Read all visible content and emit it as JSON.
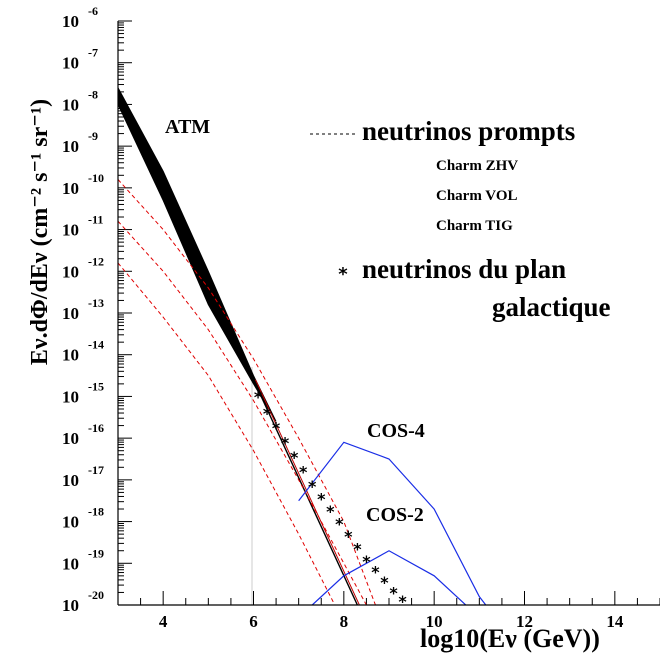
{
  "chart_data": {
    "type": "line",
    "xlabel": "log10(Eν (GeV))",
    "ylabel": "Eν.dΦ/dEν (cm⁻² s⁻¹ sr⁻¹)",
    "xlim": [
      3,
      15
    ],
    "ylim": [
      -20,
      -6
    ],
    "log_y": true,
    "x_ticks": [
      4,
      6,
      8,
      10,
      12,
      14
    ],
    "y_ticks": [
      -6,
      -7,
      -8,
      -9,
      -10,
      -11,
      -12,
      -13,
      -14,
      -15,
      -16,
      -17,
      -18,
      -19,
      -20
    ],
    "legend": {
      "prompt_title": "neutrinos prompts",
      "prompt_models": [
        "Charm ZHV",
        "Charm VOL",
        "Charm TIG"
      ],
      "galactic_line1": "neutrinos du plan",
      "galactic_line2": "galactique"
    },
    "annotations": {
      "atm": "ATM",
      "cos4": "COS-4",
      "cos2": "COS-2"
    },
    "atm_band": {
      "x": [
        3.0,
        4.0,
        5.0,
        6.0,
        6.5
      ],
      "upper": [
        -7.6,
        -9.6,
        -12.0,
        -14.5,
        -15.6
      ],
      "lower": [
        -8.0,
        -10.3,
        -12.8,
        -14.7,
        -15.6
      ]
    },
    "atm_line": {
      "x": [
        6.0,
        8.3
      ],
      "y": [
        -14.6,
        -20.0
      ]
    },
    "prompt_series": [
      {
        "x": [
          3.0,
          4.0,
          5.0,
          6.0,
          7.0,
          8.0,
          8.7
        ],
        "y": [
          -9.8,
          -11.0,
          -12.4,
          -14.1,
          -16.0,
          -18.0,
          -20.0
        ]
      },
      {
        "x": [
          3.0,
          4.0,
          5.0,
          6.0,
          7.0,
          8.0,
          8.5
        ],
        "y": [
          -10.8,
          -12.0,
          -13.4,
          -15.1,
          -17.0,
          -19.0,
          -20.0
        ]
      },
      {
        "x": [
          3.0,
          4.0,
          5.0,
          6.0,
          7.0,
          7.8
        ],
        "y": [
          -11.8,
          -13.1,
          -14.5,
          -16.3,
          -18.3,
          -20.0
        ]
      }
    ],
    "galactic_points": {
      "x": [
        6.1,
        6.3,
        6.5,
        6.7,
        6.9,
        7.1,
        7.3,
        7.5,
        7.7,
        7.9,
        8.1,
        8.3,
        8.5,
        8.7,
        8.9,
        9.1,
        9.3
      ],
      "y": [
        -15.0,
        -15.4,
        -15.75,
        -16.1,
        -16.45,
        -16.8,
        -17.15,
        -17.45,
        -17.75,
        -18.05,
        -18.35,
        -18.65,
        -18.95,
        -19.2,
        -19.45,
        -19.7,
        -19.9
      ]
    },
    "cos4": {
      "x": [
        7.0,
        8.0,
        9.0,
        10.0,
        11.0,
        11.5
      ],
      "y": [
        -17.5,
        -16.1,
        -16.5,
        -17.7,
        -19.8,
        -20.5
      ]
    },
    "cos2": {
      "x": [
        7.3,
        8.0,
        9.0,
        10.0,
        11.0
      ],
      "y": [
        -20.0,
        -19.3,
        -18.7,
        -19.3,
        -20.3
      ]
    }
  }
}
